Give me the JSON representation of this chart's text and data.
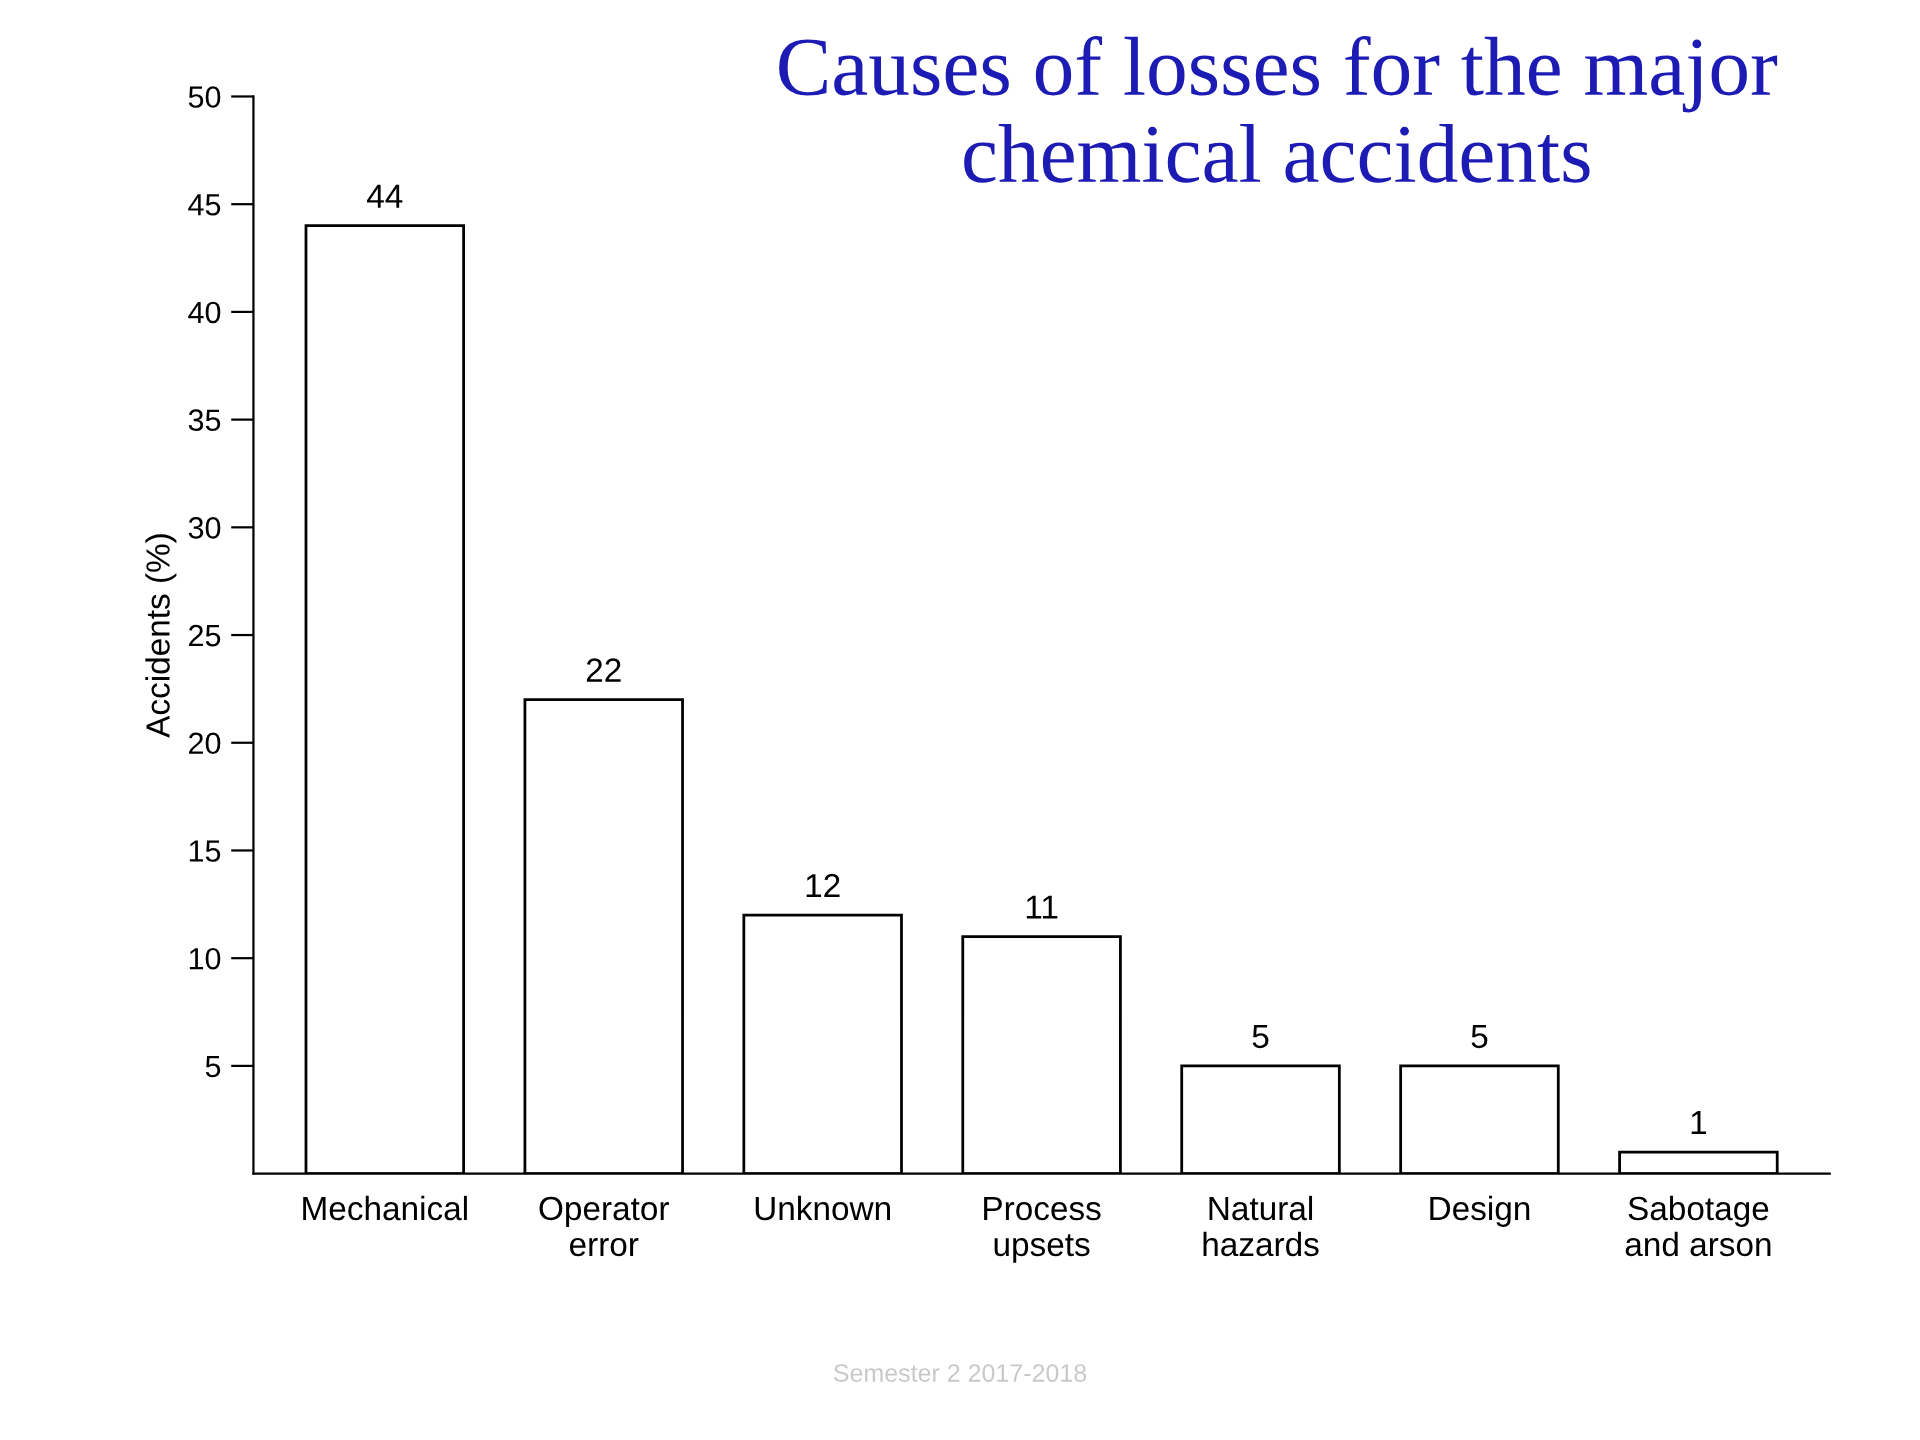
{
  "chart_data": {
    "type": "bar",
    "title": "Causes of losses for the major chemical accidents",
    "ylabel": "Accidents (%)",
    "categories": [
      "Mechanical",
      "Operator\nerror",
      "Unknown",
      "Process\nupsets",
      "Natural\nhazards",
      "Design",
      "Sabotage\nand arson"
    ],
    "values": [
      44,
      22,
      12,
      11,
      5,
      5,
      1
    ],
    "color": "#ffffff",
    "ylim": [
      0,
      50
    ],
    "yticks": [
      5,
      10,
      15,
      20,
      25,
      30,
      35,
      40,
      45,
      50
    ],
    "data_labels": true,
    "grid": false,
    "legend": false,
    "annotations": [
      "Semester 2 2017-2018"
    ]
  }
}
